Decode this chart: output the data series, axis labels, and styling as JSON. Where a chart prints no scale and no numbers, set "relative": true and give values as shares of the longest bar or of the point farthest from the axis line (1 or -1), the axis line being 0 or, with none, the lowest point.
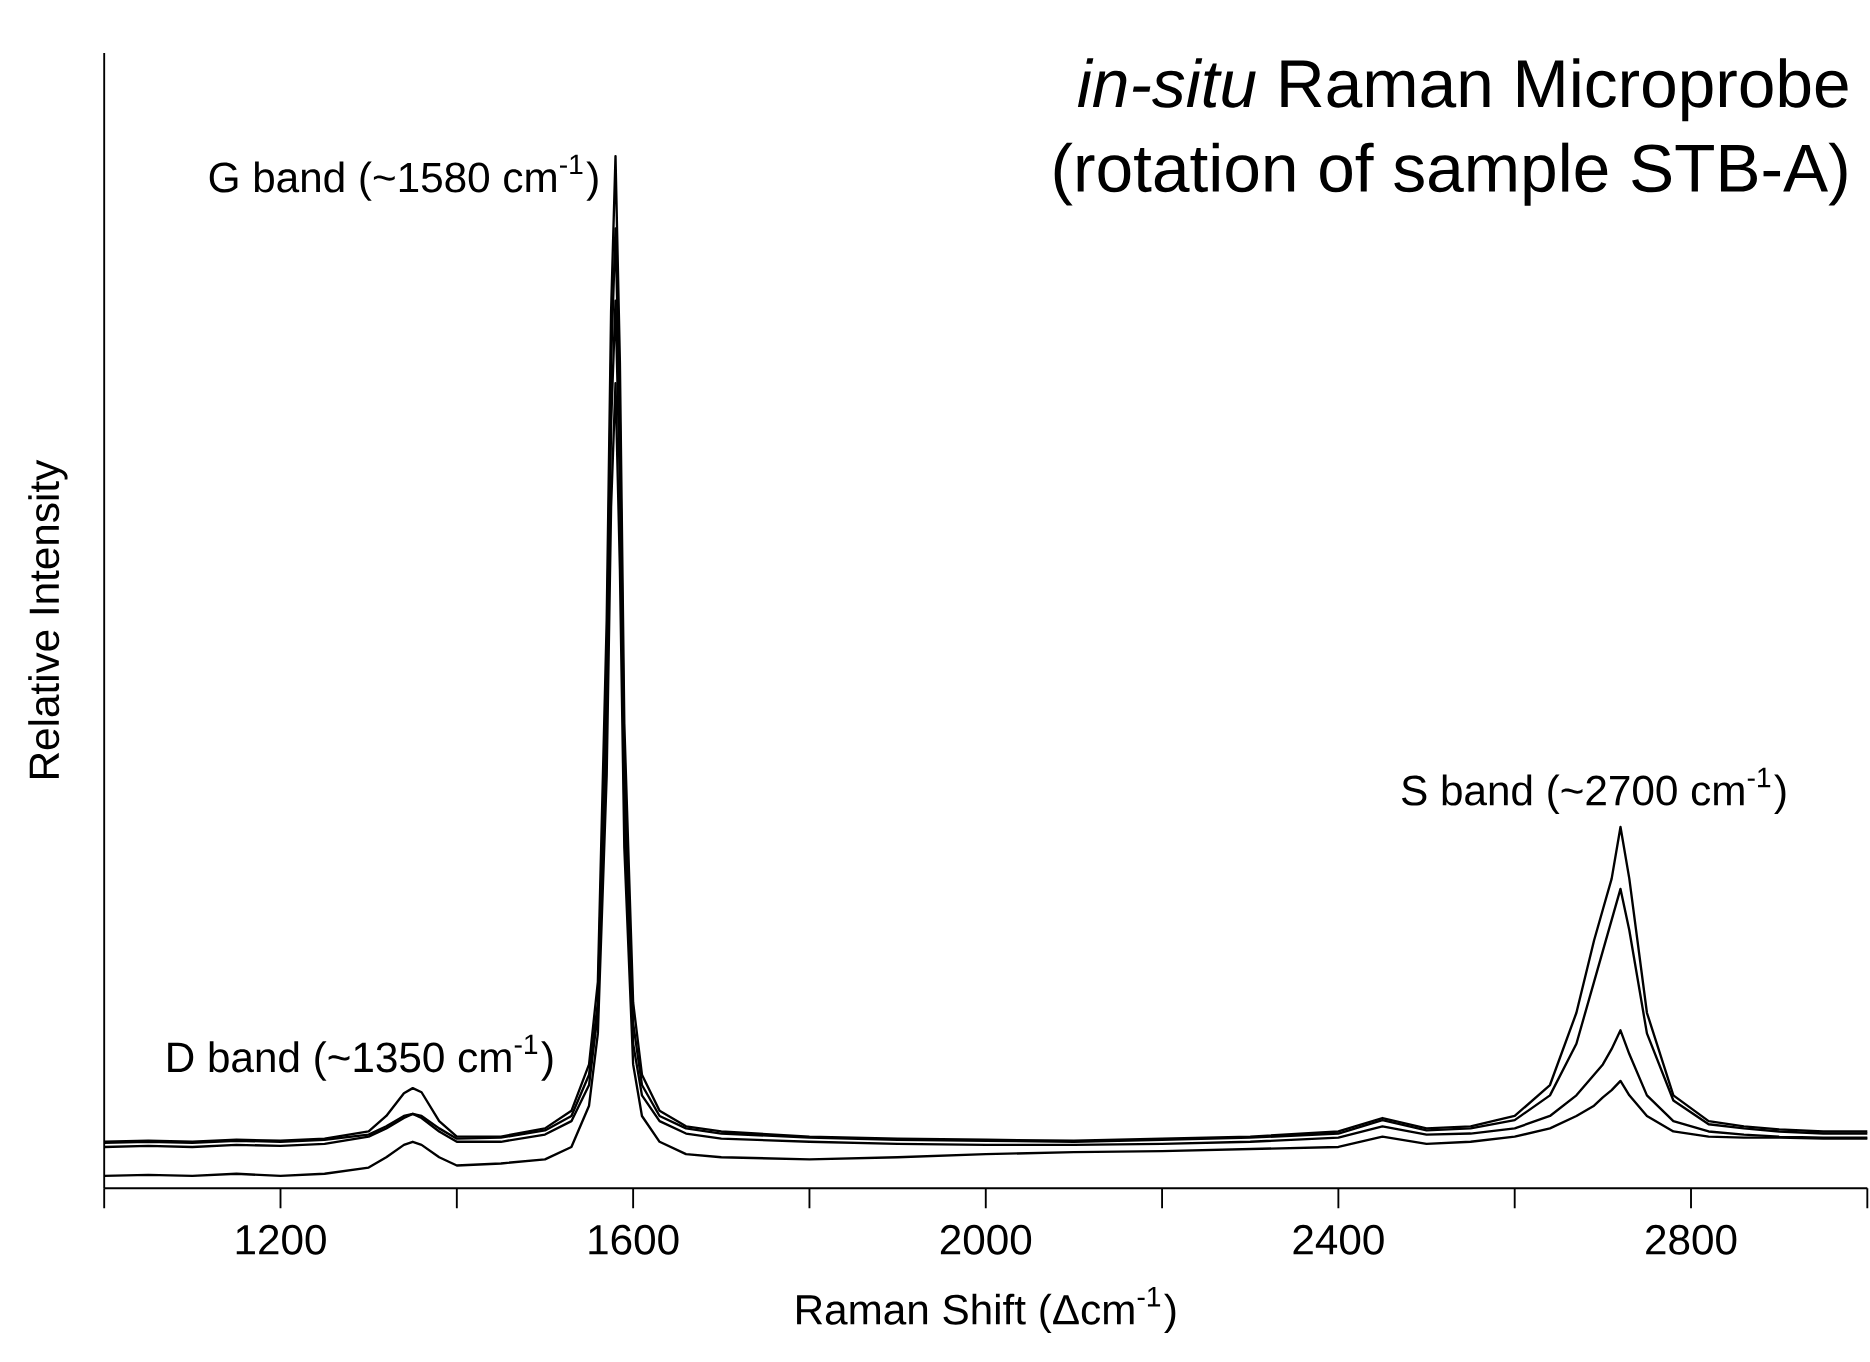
{
  "chart_data": {
    "type": "line",
    "title": "*in-situ* Raman Microprobe",
    "subtitle": "(rotation of sample STB-A)",
    "xlabel": "Raman Shift (Δcm$^{-1}$)",
    "ylabel": "Relative Intensity",
    "relative": true,
    "tick_labels": "x",
    "x": [
      1000,
      1050,
      1100,
      1150,
      1200,
      1250,
      1300,
      1320,
      1340,
      1350,
      1360,
      1380,
      1400,
      1450,
      1500,
      1530,
      1550,
      1560,
      1570,
      1575,
      1580,
      1585,
      1590,
      1600,
      1610,
      1630,
      1660,
      1700,
      1800,
      1900,
      2000,
      2100,
      2200,
      2300,
      2400,
      2450,
      2500,
      2550,
      2600,
      2640,
      2670,
      2690,
      2700,
      2710,
      2720,
      2730,
      2750,
      2780,
      2820,
      2860,
      2900,
      2950,
      3000
    ],
    "xlim": [
      1000,
      3000
    ],
    "xticks": [
      {
        "value": 1000,
        "label": null
      },
      1200,
      {
        "value": 1400,
        "label": null
      },
      1600,
      {
        "value": 1800,
        "label": null
      },
      2000,
      {
        "value": 2200,
        "label": null
      },
      2400,
      {
        "value": 2600,
        "label": null
      },
      2800,
      {
        "value": 3000,
        "label": null
      }
    ],
    "series": [
      {
        "color": "#000000",
        "values": [
          0.045,
          0.046,
          0.045,
          0.047,
          0.046,
          0.048,
          0.055,
          0.07,
          0.092,
          0.097,
          0.093,
          0.065,
          0.05,
          0.05,
          0.058,
          0.075,
          0.12,
          0.2,
          0.55,
          0.85,
          1.0,
          0.8,
          0.45,
          0.18,
          0.11,
          0.075,
          0.06,
          0.055,
          0.05,
          0.048,
          0.047,
          0.046,
          0.048,
          0.05,
          0.055,
          0.068,
          0.058,
          0.06,
          0.07,
          0.1,
          0.17,
          0.24,
          0.27,
          0.3,
          0.35,
          0.3,
          0.17,
          0.09,
          0.065,
          0.06,
          0.057,
          0.055,
          0.055
        ]
      },
      {
        "color": "#000000",
        "values": [
          0.044,
          0.045,
          0.044,
          0.046,
          0.045,
          0.047,
          0.052,
          0.06,
          0.07,
          0.072,
          0.07,
          0.058,
          0.048,
          0.049,
          0.056,
          0.07,
          0.11,
          0.18,
          0.5,
          0.8,
          0.93,
          0.74,
          0.4,
          0.16,
          0.1,
          0.07,
          0.058,
          0.053,
          0.049,
          0.047,
          0.046,
          0.045,
          0.047,
          0.049,
          0.053,
          0.066,
          0.056,
          0.058,
          0.066,
          0.09,
          0.14,
          0.2,
          0.23,
          0.26,
          0.29,
          0.25,
          0.15,
          0.085,
          0.062,
          0.058,
          0.055,
          0.053,
          0.053
        ]
      },
      {
        "color": "#000000",
        "values": [
          0.04,
          0.041,
          0.04,
          0.042,
          0.041,
          0.043,
          0.05,
          0.058,
          0.068,
          0.072,
          0.068,
          0.055,
          0.045,
          0.045,
          0.052,
          0.065,
          0.1,
          0.17,
          0.45,
          0.74,
          0.86,
          0.68,
          0.37,
          0.14,
          0.09,
          0.065,
          0.053,
          0.048,
          0.045,
          0.043,
          0.042,
          0.042,
          0.043,
          0.045,
          0.049,
          0.06,
          0.052,
          0.053,
          0.058,
          0.07,
          0.09,
          0.11,
          0.12,
          0.135,
          0.153,
          0.13,
          0.09,
          0.065,
          0.055,
          0.052,
          0.05,
          0.049,
          0.049
        ]
      },
      {
        "color": "#000000",
        "values": [
          0.012,
          0.013,
          0.012,
          0.014,
          0.012,
          0.014,
          0.02,
          0.03,
          0.042,
          0.045,
          0.042,
          0.03,
          0.022,
          0.024,
          0.028,
          0.04,
          0.08,
          0.15,
          0.4,
          0.66,
          0.78,
          0.6,
          0.33,
          0.12,
          0.07,
          0.045,
          0.033,
          0.03,
          0.028,
          0.03,
          0.033,
          0.035,
          0.036,
          0.038,
          0.04,
          0.05,
          0.043,
          0.045,
          0.05,
          0.058,
          0.07,
          0.08,
          0.088,
          0.095,
          0.104,
          0.09,
          0.07,
          0.055,
          0.05,
          0.049,
          0.049,
          0.048,
          0.048
        ]
      }
    ],
    "annotations": [
      "D band (~1350 cm$^{-1}$)",
      "G band (~1580 cm$^{-1}$)",
      "S band (~2700 cm$^{-1}$)"
    ]
  }
}
